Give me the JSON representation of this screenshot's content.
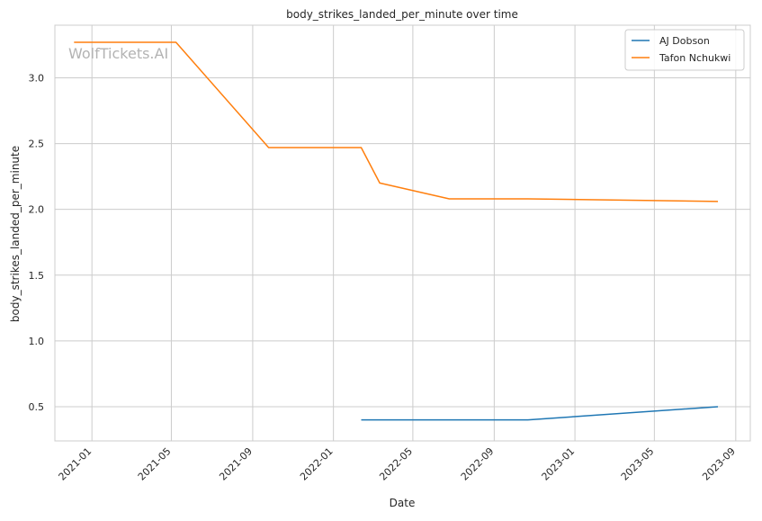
{
  "chart_data": {
    "type": "line",
    "title": "body_strikes_landed_per_minute over time",
    "xlabel": "Date",
    "ylabel": "body_strikes_landed_per_minute",
    "watermark": "WolfTickets.AI",
    "xlim": [
      "2020-11-06",
      "2023-09-23"
    ],
    "ylim": [
      0.24,
      3.4
    ],
    "grid": true,
    "legend_position": "top-right",
    "x_ticks": [
      "2021-01",
      "2021-05",
      "2021-09",
      "2022-01",
      "2022-05",
      "2022-09",
      "2023-01",
      "2023-05",
      "2023-09"
    ],
    "y_ticks": [
      "0.5",
      "1.0",
      "1.5",
      "2.0",
      "2.5",
      "3.0"
    ],
    "series": [
      {
        "name": "AJ Dobson",
        "color": "#1f77b4",
        "points": [
          {
            "x": "2022-02-12",
            "y": 0.4
          },
          {
            "x": "2022-10-22",
            "y": 0.4
          },
          {
            "x": "2023-08-05",
            "y": 0.5
          }
        ]
      },
      {
        "name": "Tafon Nchukwi",
        "color": "#ff7f0e",
        "points": [
          {
            "x": "2020-12-05",
            "y": 3.27
          },
          {
            "x": "2021-05-08",
            "y": 3.27
          },
          {
            "x": "2021-09-25",
            "y": 2.47
          },
          {
            "x": "2022-02-12",
            "y": 2.47
          },
          {
            "x": "2022-03-12",
            "y": 2.2
          },
          {
            "x": "2022-06-25",
            "y": 2.08
          },
          {
            "x": "2022-10-22",
            "y": 2.08
          },
          {
            "x": "2023-08-05",
            "y": 2.06
          }
        ]
      }
    ]
  }
}
